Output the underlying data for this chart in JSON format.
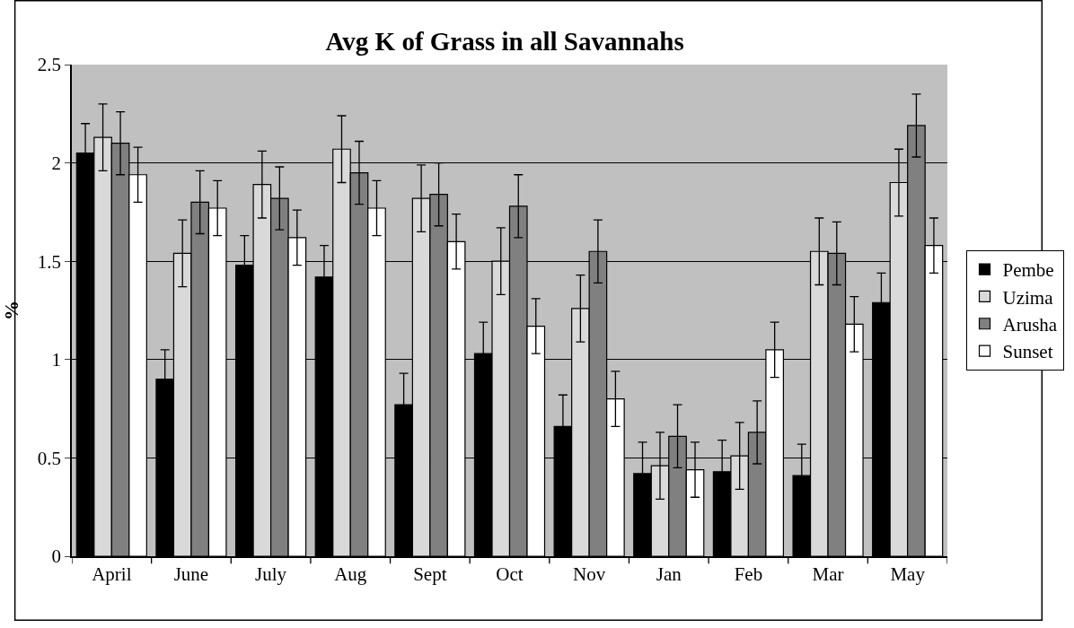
{
  "chart_data": {
    "type": "bar",
    "title": "Avg K of Grass in all Savannahs",
    "ylabel": "%",
    "categories": [
      "April",
      "June",
      "July",
      "Aug",
      "Sept",
      "Oct",
      "Nov",
      "Jan",
      "Feb",
      "Mar",
      "May"
    ],
    "series": [
      {
        "name": "Pembe",
        "color": "#000000",
        "values": [
          2.05,
          0.9,
          1.48,
          1.42,
          0.77,
          1.03,
          0.66,
          0.42,
          0.43,
          0.41,
          1.29
        ],
        "errors": [
          0.15,
          0.15,
          0.15,
          0.16,
          0.16,
          0.16,
          0.16,
          0.16,
          0.16,
          0.16,
          0.15
        ]
      },
      {
        "name": "Uzima",
        "color": "#d9d9d9",
        "values": [
          2.13,
          1.54,
          1.89,
          2.07,
          1.82,
          1.5,
          1.26,
          0.46,
          0.51,
          1.55,
          1.9
        ],
        "errors": [
          0.17,
          0.17,
          0.17,
          0.17,
          0.17,
          0.17,
          0.17,
          0.17,
          0.17,
          0.17,
          0.17
        ]
      },
      {
        "name": "Arusha",
        "color": "#808080",
        "values": [
          2.1,
          1.8,
          1.82,
          1.95,
          1.84,
          1.78,
          1.55,
          0.61,
          0.63,
          1.54,
          2.19
        ],
        "errors": [
          0.16,
          0.16,
          0.16,
          0.16,
          0.16,
          0.16,
          0.16,
          0.16,
          0.16,
          0.16,
          0.16
        ]
      },
      {
        "name": "Sunset",
        "color": "#ffffff",
        "values": [
          1.94,
          1.77,
          1.62,
          1.77,
          1.6,
          1.17,
          0.8,
          0.44,
          1.05,
          1.18,
          1.58
        ],
        "errors": [
          0.14,
          0.14,
          0.14,
          0.14,
          0.14,
          0.14,
          0.14,
          0.14,
          0.14,
          0.14,
          0.14
        ]
      }
    ],
    "ylim": [
      0,
      2.5
    ],
    "yticks": [
      0,
      0.5,
      1,
      1.5,
      2,
      2.5
    ],
    "grid": "y",
    "legend": "right"
  }
}
